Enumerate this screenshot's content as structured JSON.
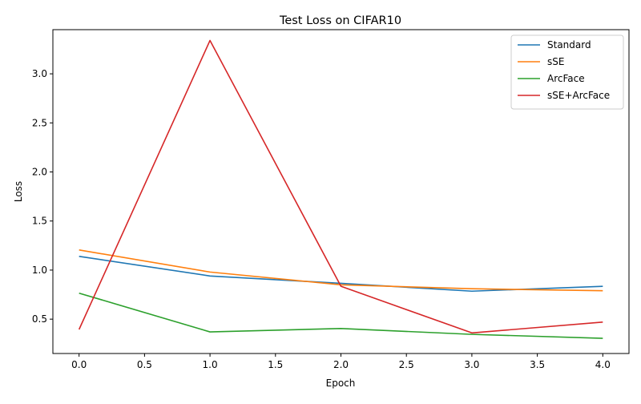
{
  "chart_data": {
    "type": "line",
    "title": "Test Loss on CIFAR10",
    "xlabel": "Epoch",
    "ylabel": "Loss",
    "x": [
      0,
      1,
      2,
      3,
      4
    ],
    "xlim": [
      -0.2,
      4.2
    ],
    "ylim": [
      0.15,
      3.45
    ],
    "xticks": [
      "0.0",
      "0.5",
      "1.0",
      "1.5",
      "2.0",
      "2.5",
      "3.0",
      "3.5",
      "4.0"
    ],
    "yticks": [
      "0.5",
      "1.0",
      "1.5",
      "2.0",
      "2.5",
      "3.0"
    ],
    "grid": false,
    "legend_position": "top-right",
    "series": [
      {
        "name": "Standard",
        "color": "#1f77b4",
        "values": [
          1.14,
          0.94,
          0.865,
          0.785,
          0.835
        ]
      },
      {
        "name": "sSE",
        "color": "#ff7f0e",
        "values": [
          1.205,
          0.98,
          0.85,
          0.81,
          0.79
        ]
      },
      {
        "name": "ArcFace",
        "color": "#2ca02c",
        "values": [
          0.765,
          0.37,
          0.405,
          0.345,
          0.305
        ]
      },
      {
        "name": "sSE+ArcFace",
        "color": "#d62728",
        "values": [
          0.395,
          3.34,
          0.835,
          0.36,
          0.47
        ]
      }
    ]
  }
}
